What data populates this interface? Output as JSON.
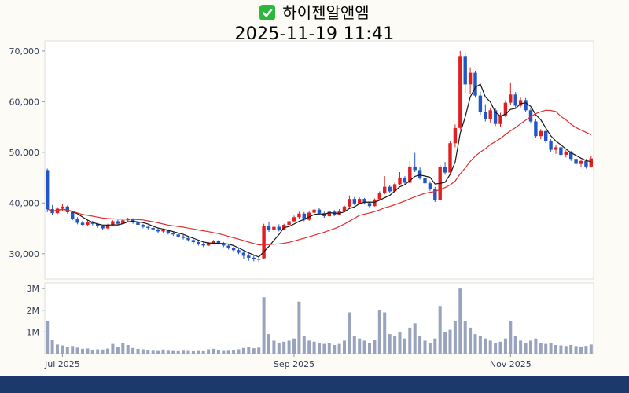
{
  "header": {
    "stock_name": "하이젠알앤엠",
    "datetime": "2025-11-19 11:41",
    "checkbox_color": "#2db83d"
  },
  "footer": {
    "bar_color": "#1b3a6b"
  },
  "chart_data": {
    "type": "candlestick+volume",
    "title": "하이젠알앤엠",
    "subtitle": "2025-11-19 11:41",
    "legend": "none",
    "grid": "off",
    "candle_format": [
      "open",
      "high",
      "low",
      "close",
      "volume"
    ],
    "price_axis": {
      "ticks": [
        30000,
        40000,
        50000,
        60000,
        70000
      ],
      "tick_labels": [
        "30,000",
        "40,000",
        "50,000",
        "60,000",
        "70,000"
      ],
      "ylim": [
        25000,
        72000
      ]
    },
    "volume_axis": {
      "ticks": [
        [
          1000000,
          "1M"
        ],
        [
          2000000,
          "2M"
        ],
        [
          3000000,
          "3M"
        ]
      ],
      "ylim": [
        0,
        3150000
      ]
    },
    "x_ticks": [
      {
        "index": 3,
        "label": "Jul 2025"
      },
      {
        "index": 49,
        "label": "Sep 2025"
      },
      {
        "index": 92,
        "label": "Nov 2025"
      }
    ],
    "moving_averages": [
      {
        "window": 5,
        "color": "#161616"
      },
      {
        "window": 20,
        "color": "#e02f2f"
      }
    ],
    "colors": {
      "up": "#e02020",
      "down": "#2256c6",
      "volume": "#9aa3bd",
      "text": "#2f3b55",
      "panel_border": "#dddddd",
      "axis": "#999999"
    },
    "candles": [
      [
        46500,
        46800,
        38200,
        38800,
        1500000
      ],
      [
        38800,
        39600,
        37600,
        38000,
        650000
      ],
      [
        38000,
        39200,
        37800,
        38900,
        420000
      ],
      [
        38900,
        39800,
        38500,
        39300,
        380000
      ],
      [
        39300,
        39500,
        37900,
        38200,
        300000
      ],
      [
        38200,
        38400,
        36600,
        36900,
        350000
      ],
      [
        36900,
        37200,
        35800,
        36100,
        280000
      ],
      [
        36100,
        36500,
        35400,
        35700,
        220000
      ],
      [
        35700,
        36600,
        35500,
        36300,
        240000
      ],
      [
        36300,
        36500,
        35600,
        35900,
        180000
      ],
      [
        35900,
        36100,
        35100,
        35400,
        200000
      ],
      [
        35400,
        35600,
        34700,
        35000,
        190000
      ],
      [
        35000,
        35900,
        34900,
        35700,
        230000
      ],
      [
        35700,
        36600,
        35500,
        36400,
        450000
      ],
      [
        36400,
        36700,
        35600,
        35900,
        300000
      ],
      [
        35900,
        36800,
        35800,
        36600,
        480000
      ],
      [
        36600,
        37100,
        36200,
        36900,
        400000
      ],
      [
        36900,
        37000,
        35900,
        36200,
        260000
      ],
      [
        36200,
        36400,
        35400,
        35700,
        220000
      ],
      [
        35700,
        35900,
        35000,
        35300,
        200000
      ],
      [
        35300,
        35600,
        34800,
        35100,
        180000
      ],
      [
        35100,
        35300,
        34500,
        34800,
        170000
      ],
      [
        34800,
        35000,
        34100,
        34400,
        160000
      ],
      [
        34400,
        34900,
        34200,
        34700,
        190000
      ],
      [
        34700,
        34800,
        33800,
        34100,
        170000
      ],
      [
        34100,
        34300,
        33500,
        33800,
        160000
      ],
      [
        33800,
        34000,
        33100,
        33400,
        150000
      ],
      [
        33400,
        33700,
        32800,
        33100,
        170000
      ],
      [
        33100,
        33300,
        32400,
        32700,
        160000
      ],
      [
        32700,
        32900,
        32000,
        32300,
        150000
      ],
      [
        32300,
        32500,
        31600,
        31900,
        160000
      ],
      [
        31900,
        32200,
        31300,
        31600,
        150000
      ],
      [
        31600,
        32300,
        31500,
        32100,
        200000
      ],
      [
        32100,
        32700,
        32000,
        32500,
        220000
      ],
      [
        32500,
        32700,
        31800,
        32100,
        180000
      ],
      [
        32100,
        32300,
        31300,
        31600,
        160000
      ],
      [
        31600,
        31800,
        30800,
        31100,
        170000
      ],
      [
        31100,
        31400,
        30400,
        30700,
        180000
      ],
      [
        30700,
        31000,
        29900,
        30200,
        200000
      ],
      [
        30200,
        30500,
        29000,
        29600,
        260000
      ],
      [
        29600,
        30000,
        28600,
        29200,
        300000
      ],
      [
        29200,
        29700,
        28500,
        29000,
        250000
      ],
      [
        29000,
        29400,
        28400,
        28800,
        280000
      ],
      [
        29100,
        35900,
        28900,
        35400,
        2600000
      ],
      [
        35400,
        36200,
        34300,
        34700,
        900000
      ],
      [
        34700,
        35600,
        34200,
        35300,
        600000
      ],
      [
        35300,
        35800,
        34400,
        34700,
        500000
      ],
      [
        34700,
        35900,
        34600,
        35700,
        550000
      ],
      [
        35700,
        36700,
        35500,
        36400,
        600000
      ],
      [
        36400,
        37500,
        36200,
        37200,
        700000
      ],
      [
        37200,
        38300,
        36900,
        37900,
        2400000
      ],
      [
        37900,
        38200,
        36400,
        36700,
        800000
      ],
      [
        36700,
        38400,
        36500,
        38100,
        600000
      ],
      [
        38100,
        39000,
        37800,
        38700,
        550000
      ],
      [
        38700,
        39100,
        37700,
        38000,
        500000
      ],
      [
        38000,
        38300,
        37100,
        37400,
        450000
      ],
      [
        37400,
        38500,
        37300,
        38300,
        480000
      ],
      [
        38300,
        38600,
        37400,
        37700,
        400000
      ],
      [
        37700,
        38800,
        37600,
        38500,
        450000
      ],
      [
        38500,
        39500,
        38300,
        39300,
        600000
      ],
      [
        39300,
        41500,
        39100,
        40800,
        1900000
      ],
      [
        40800,
        41200,
        39600,
        39900,
        800000
      ],
      [
        39900,
        41100,
        39700,
        40800,
        700000
      ],
      [
        40800,
        41000,
        39700,
        40000,
        600000
      ],
      [
        40000,
        40300,
        39100,
        39400,
        500000
      ],
      [
        39400,
        40900,
        39300,
        40700,
        650000
      ],
      [
        40700,
        42300,
        40500,
        41900,
        2000000
      ],
      [
        41900,
        45300,
        41700,
        43200,
        1900000
      ],
      [
        43200,
        43600,
        41900,
        42300,
        900000
      ],
      [
        42300,
        44000,
        42100,
        43700,
        800000
      ],
      [
        43700,
        46100,
        43500,
        44900,
        1000000
      ],
      [
        44900,
        45300,
        43600,
        44000,
        700000
      ],
      [
        44000,
        48300,
        43900,
        47200,
        1200000
      ],
      [
        47200,
        49900,
        46100,
        46500,
        1400000
      ],
      [
        46500,
        47000,
        44600,
        45000,
        800000
      ],
      [
        45000,
        45400,
        43500,
        43900,
        600000
      ],
      [
        43900,
        44300,
        42400,
        42800,
        500000
      ],
      [
        42800,
        43200,
        40200,
        40600,
        700000
      ],
      [
        40600,
        47600,
        40400,
        47100,
        2200000
      ],
      [
        47100,
        48100,
        45600,
        46000,
        1000000
      ],
      [
        46000,
        52300,
        45900,
        51800,
        1100000
      ],
      [
        51800,
        55500,
        51000,
        54800,
        1500000
      ],
      [
        54800,
        70000,
        54500,
        69000,
        3000000
      ],
      [
        69000,
        69600,
        61800,
        63400,
        1500000
      ],
      [
        63400,
        66800,
        61500,
        65700,
        1200000
      ],
      [
        65700,
        66100,
        60800,
        61200,
        900000
      ],
      [
        61200,
        62000,
        57400,
        57900,
        800000
      ],
      [
        57900,
        59500,
        56100,
        56600,
        700000
      ],
      [
        56600,
        58800,
        55900,
        58300,
        600000
      ],
      [
        58300,
        58700,
        55200,
        55600,
        500000
      ],
      [
        55600,
        57800,
        55100,
        57300,
        550000
      ],
      [
        57300,
        60300,
        56900,
        59800,
        700000
      ],
      [
        59800,
        63800,
        59400,
        61400,
        1500000
      ],
      [
        61400,
        61900,
        58700,
        59200,
        800000
      ],
      [
        59200,
        60800,
        58900,
        60300,
        600000
      ],
      [
        60300,
        60700,
        57900,
        58300,
        500000
      ],
      [
        58300,
        58700,
        55700,
        56100,
        600000
      ],
      [
        56100,
        56500,
        52800,
        53200,
        700000
      ],
      [
        53200,
        54600,
        52600,
        54200,
        500000
      ],
      [
        54200,
        54500,
        51800,
        52200,
        450000
      ],
      [
        52200,
        52600,
        50100,
        50500,
        500000
      ],
      [
        50500,
        51400,
        49700,
        51000,
        400000
      ],
      [
        51000,
        51300,
        49100,
        49500,
        380000
      ],
      [
        49500,
        50400,
        49000,
        50000,
        350000
      ],
      [
        50000,
        50300,
        48300,
        48700,
        400000
      ],
      [
        48700,
        49100,
        47300,
        47700,
        350000
      ],
      [
        47700,
        48600,
        47100,
        48300,
        330000
      ],
      [
        48300,
        48700,
        46800,
        47200,
        360000
      ],
      [
        47200,
        49200,
        47000,
        48800,
        420000
      ]
    ]
  }
}
